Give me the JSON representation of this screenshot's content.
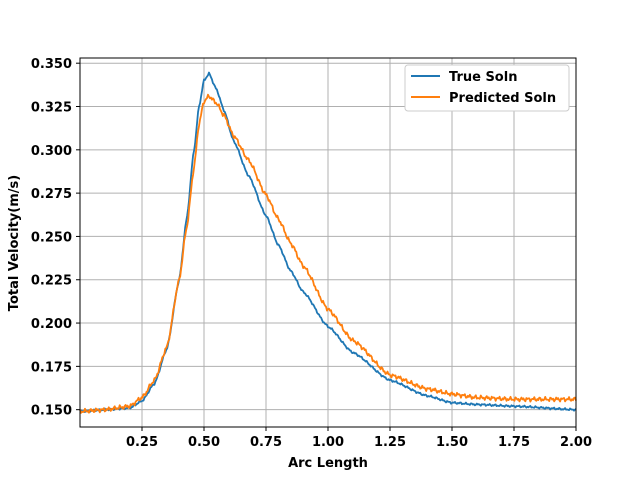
{
  "chart_data": {
    "type": "line",
    "title": "",
    "xlabel": "Arc Length",
    "ylabel": "Total Velocity(m/s)",
    "xlim": [
      0.0,
      2.0
    ],
    "ylim": [
      0.14,
      0.353
    ],
    "grid": true,
    "legend_position": "top-right",
    "xticks": [
      0.25,
      0.5,
      0.75,
      1.0,
      1.25,
      1.5,
      1.75,
      2.0
    ],
    "xtick_labels": [
      "0.25",
      "0.50",
      "0.75",
      "1.00",
      "1.25",
      "1.50",
      "1.75",
      "2.00"
    ],
    "yticks": [
      0.15,
      0.175,
      0.2,
      0.225,
      0.25,
      0.275,
      0.3,
      0.325,
      0.35
    ],
    "ytick_labels": [
      "0.150",
      "0.175",
      "0.200",
      "0.225",
      "0.250",
      "0.275",
      "0.300",
      "0.325",
      "0.350"
    ],
    "series": [
      {
        "name": "True Soln",
        "color": "#1f77b4",
        "x": [
          0.0,
          0.1,
          0.2,
          0.25,
          0.3,
          0.35,
          0.4,
          0.43,
          0.46,
          0.48,
          0.5,
          0.52,
          0.55,
          0.58,
          0.62,
          0.68,
          0.75,
          0.8,
          0.85,
          0.9,
          1.0,
          1.1,
          1.25,
          1.4,
          1.5,
          1.6,
          1.75,
          2.0
        ],
        "values": [
          0.149,
          0.15,
          0.151,
          0.155,
          0.165,
          0.185,
          0.225,
          0.26,
          0.3,
          0.325,
          0.34,
          0.344,
          0.335,
          0.323,
          0.305,
          0.285,
          0.262,
          0.245,
          0.23,
          0.218,
          0.198,
          0.183,
          0.167,
          0.158,
          0.154,
          0.153,
          0.152,
          0.15
        ]
      },
      {
        "name": "Predicted Soln",
        "color": "#ff7f0e",
        "x": [
          0.0,
          0.1,
          0.2,
          0.25,
          0.3,
          0.35,
          0.4,
          0.43,
          0.46,
          0.48,
          0.5,
          0.52,
          0.55,
          0.58,
          0.62,
          0.68,
          0.75,
          0.8,
          0.85,
          0.9,
          1.0,
          1.1,
          1.25,
          1.4,
          1.5,
          1.6,
          1.75,
          2.0
        ],
        "values": [
          0.149,
          0.15,
          0.152,
          0.157,
          0.167,
          0.186,
          0.225,
          0.255,
          0.29,
          0.315,
          0.328,
          0.331,
          0.327,
          0.32,
          0.308,
          0.294,
          0.274,
          0.26,
          0.246,
          0.233,
          0.208,
          0.19,
          0.17,
          0.162,
          0.159,
          0.157,
          0.156,
          0.156
        ]
      }
    ]
  }
}
